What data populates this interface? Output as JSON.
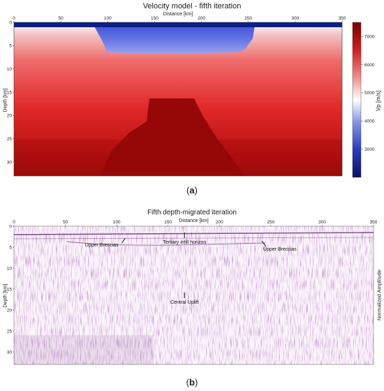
{
  "chart_data": [
    {
      "type": "heatmap",
      "title": "Velocity model - fifth iteration",
      "xlabel": "Distance [km]",
      "ylabel": "Depth [km]",
      "xlim": [
        0,
        350
      ],
      "ylim": [
        33,
        0
      ],
      "x_ticks": [
        0,
        50,
        100,
        150,
        200,
        250,
        300,
        350
      ],
      "y_ticks": [
        0,
        5,
        10,
        15,
        20,
        25,
        30
      ],
      "colorbar": {
        "label": "Vp [m/s]",
        "range": [
          2000,
          7500
        ],
        "ticks": [
          3000,
          4000,
          5000,
          6000,
          7000
        ],
        "colormap": "blue-white-red"
      },
      "layers": [
        {
          "name": "sea water",
          "vp": 1500,
          "top_depth": 0,
          "bottom_depth": 1
        },
        {
          "name": "tertiary infill basin",
          "vp": 3800,
          "x_range": [
            95,
            250
          ],
          "bottom_depth": 6.5
        },
        {
          "name": "central uplift",
          "vp": 7400,
          "x_range": [
            115,
            240
          ],
          "top_depth": 16.5
        }
      ],
      "panel_label": "a"
    },
    {
      "type": "heatmap",
      "title": "Fifth depth-migrated iteration",
      "xlabel": "Distance [km]",
      "ylabel": "Depth [km]",
      "colorbar_label": "Normalized Amplitude",
      "xlim": [
        0,
        350
      ],
      "ylim": [
        33,
        0
      ],
      "x_ticks": [
        0,
        50,
        100,
        150,
        200,
        250,
        300,
        350
      ],
      "y_ticks": [
        0,
        5,
        10,
        15,
        20,
        25,
        30
      ],
      "annotations": [
        {
          "text": "Upper Breccias",
          "x": 103,
          "y": 4.5
        },
        {
          "text": "Tertiary infill horizon",
          "x": 166,
          "y": 1.5
        },
        {
          "text": "Upper Breccias",
          "x": 248,
          "y": 4.5
        },
        {
          "text": "Central Uplift",
          "x": 166,
          "y": 17.5
        }
      ],
      "panel_label": "b"
    }
  ],
  "labels": {
    "a_open": "(",
    "a": "a",
    "a_close": ")",
    "b_open": "(",
    "b": "b",
    "b_close": ")"
  },
  "colors": {
    "deep_blue": "#0a1a6e",
    "white": "#ffffff",
    "red": "#d21414",
    "dark_red": "#8a0000",
    "seismic": "#7a3a8c"
  }
}
